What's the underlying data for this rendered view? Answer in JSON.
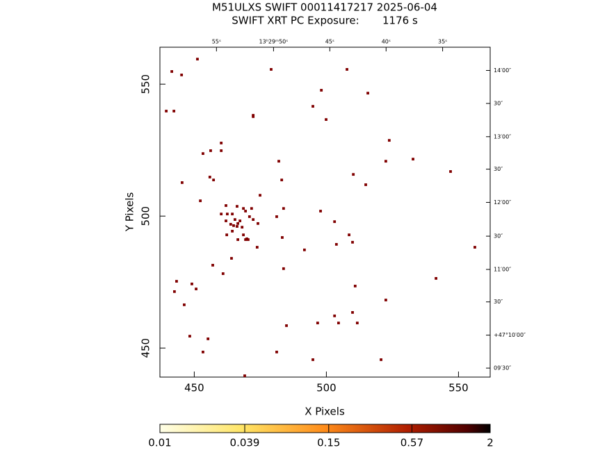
{
  "chart_data": {
    "type": "scatter",
    "title": "M51ULXS SWIFT 00011417217 2025-06-04",
    "subtitle": "SWIFT XRT PC Exposure:       1176 s",
    "x_label": "X Pixels",
    "y_label": "Y Pixels",
    "xlim": [
      437,
      562
    ],
    "ylim": [
      439,
      564
    ],
    "xticks": [
      450,
      500,
      550
    ],
    "yticks": [
      450,
      500,
      550
    ],
    "ra_ticks": [
      {
        "value": 458.4,
        "label": "55ˢ"
      },
      {
        "value": 480.0,
        "label": "13ʰ29ᵐ50ˢ"
      },
      {
        "value": 501.3,
        "label": "45ˢ"
      },
      {
        "value": 522.6,
        "label": "40ˢ"
      },
      {
        "value": 544.0,
        "label": "35ˢ"
      }
    ],
    "dec_ticks": [
      {
        "value": 555.2,
        "label": "14′00″"
      },
      {
        "value": 542.7,
        "label": "30″"
      },
      {
        "value": 530.1,
        "label": "13′00″"
      },
      {
        "value": 517.8,
        "label": "30″"
      },
      {
        "value": 505.2,
        "label": "12′00″"
      },
      {
        "value": 492.4,
        "label": "30″"
      },
      {
        "value": 479.8,
        "label": "11′00″"
      },
      {
        "value": 467.5,
        "label": "30″"
      },
      {
        "value": 454.9,
        "label": "+47°10′00″"
      },
      {
        "value": 442.4,
        "label": "09′30″"
      }
    ],
    "series": [
      {
        "color": "#800000",
        "x": [
          451.2,
          441.5,
          445.2,
          479.1,
          507.8,
          498.1,
          515.7,
          439.4,
          442.3,
          494.9,
          472.3,
          472.3,
          499.9,
          523.8,
          460.2,
          456.2,
          453.3,
          460.2,
          482.0,
          522.5,
          532.8,
          510.2,
          547.0,
          455.9,
          457.3,
          445.4,
          483.1,
          514.9,
          474.9,
          452.3,
          462.0,
          466.2,
          483.8,
          468.6,
          469.4,
          460.2,
          462.5,
          464.4,
          471.7,
          470.9,
          481.2,
          497.8,
          503.1,
          462.0,
          465.4,
          467.3,
          466.5,
          464.9,
          468.1,
          472.3,
          474.1,
          463.8,
          466.2,
          462.3,
          464.4,
          468.6,
          469.9,
          466.5,
          469.4,
          470.4,
          483.3,
          508.6,
          509.9,
          503.8,
          473.8,
          491.7,
          556.2,
          464.1,
          457.0,
          483.8,
          460.9,
          443.3,
          449.1,
          450.7,
          442.5,
          510.9,
          541.5,
          522.5,
          446.2,
          509.9,
          503.1,
          496.7,
          504.6,
          511.7,
          484.9,
          448.3,
          455.2,
          453.3,
          481.2,
          494.9,
          520.7,
          469.1
        ],
        "y": [
          559.5,
          554.8,
          553.5,
          555.6,
          555.6,
          547.7,
          546.6,
          539.8,
          539.8,
          541.6,
          538.2,
          537.7,
          536.6,
          528.7,
          527.7,
          524.8,
          523.7,
          524.8,
          520.8,
          520.8,
          521.6,
          515.8,
          516.9,
          514.8,
          513.7,
          512.7,
          513.7,
          511.9,
          507.9,
          505.8,
          504.0,
          503.7,
          502.9,
          502.9,
          501.9,
          500.8,
          500.8,
          500.8,
          502.9,
          499.8,
          499.8,
          501.9,
          497.9,
          498.2,
          498.7,
          498.2,
          497.2,
          496.4,
          495.8,
          498.7,
          497.2,
          496.9,
          496.1,
          492.9,
          494.3,
          492.9,
          491.4,
          491.1,
          491.1,
          491.1,
          491.9,
          492.9,
          490.1,
          489.3,
          488.2,
          487.2,
          488.2,
          484.0,
          481.4,
          480.1,
          478.2,
          475.3,
          474.3,
          472.4,
          471.4,
          473.5,
          476.4,
          468.2,
          466.4,
          463.5,
          462.2,
          459.5,
          459.5,
          459.5,
          458.5,
          454.5,
          453.5,
          448.5,
          448.5,
          445.6,
          445.6,
          439.5
        ]
      }
    ],
    "colorbar": {
      "log": true,
      "ticks": [
        0.01,
        0.039,
        0.15,
        0.57,
        2
      ]
    }
  }
}
